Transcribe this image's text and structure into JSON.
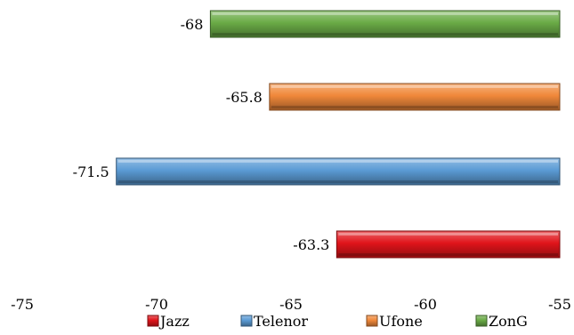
{
  "chart_data": {
    "type": "bar",
    "orientation": "horizontal",
    "xlim": [
      -75,
      -55
    ],
    "x_ticks": [
      "-75",
      "-70",
      "-65",
      "-60",
      "-55"
    ],
    "grid": false,
    "legend_position": "bottom",
    "series": [
      {
        "name": "Jazz",
        "value": -63.3,
        "label": "-63.3",
        "color": "#e0141a"
      },
      {
        "name": "Telenor",
        "value": -71.5,
        "label": "-71.5",
        "color": "#5b9bd5"
      },
      {
        "name": "Ufone",
        "value": -65.8,
        "label": "-65.8",
        "color": "#f0883a"
      },
      {
        "name": "ZonG",
        "value": -68,
        "label": "-68",
        "color": "#6aab46"
      }
    ],
    "bar_order_top_to_bottom": [
      "ZonG",
      "Ufone",
      "Telenor",
      "Jazz"
    ]
  }
}
